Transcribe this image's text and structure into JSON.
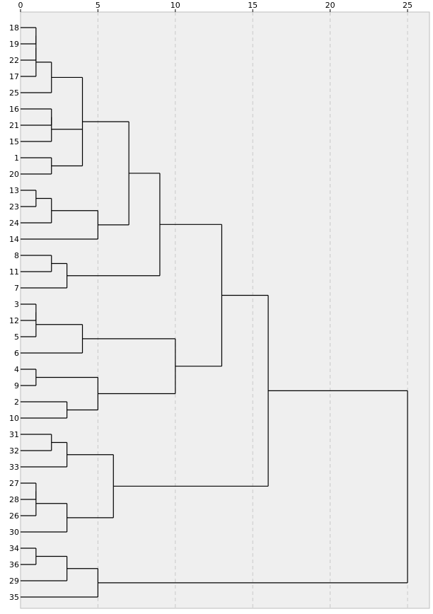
{
  "chart_data": {
    "type": "dendrogram",
    "orientation": "horizontal",
    "xlim": [
      0,
      25
    ],
    "x_ticks": [
      "0",
      "5",
      "10",
      "15",
      "20",
      "25"
    ],
    "grid": "vertical dashed",
    "background_color": "#efefef",
    "line_color": "#000000",
    "leaves": [
      "18",
      "19",
      "22",
      "17",
      "25",
      "16",
      "21",
      "15",
      "1",
      "20",
      "13",
      "23",
      "24",
      "14",
      "8",
      "11",
      "7",
      "3",
      "12",
      "5",
      "6",
      "4",
      "9",
      "2",
      "10",
      "31",
      "32",
      "33",
      "27",
      "28",
      "26",
      "30",
      "34",
      "36",
      "29",
      "35"
    ],
    "merges": [
      {
        "id": "m1",
        "children": [
          "18",
          "19"
        ],
        "height": 1
      },
      {
        "id": "m2",
        "children": [
          "m1",
          "22"
        ],
        "height": 1
      },
      {
        "id": "m3",
        "children": [
          "m2",
          "17"
        ],
        "height": 1
      },
      {
        "id": "m4",
        "children": [
          "m3",
          "25"
        ],
        "height": 2
      },
      {
        "id": "m5",
        "children": [
          "16",
          "21"
        ],
        "height": 2
      },
      {
        "id": "m6",
        "children": [
          "m5",
          "15"
        ],
        "height": 2
      },
      {
        "id": "m7",
        "children": [
          "1",
          "20"
        ],
        "height": 2
      },
      {
        "id": "m8",
        "children": [
          "m4",
          "m6",
          "m7"
        ],
        "height": 4
      },
      {
        "id": "m9",
        "children": [
          "13",
          "23"
        ],
        "height": 1
      },
      {
        "id": "m10",
        "children": [
          "m9",
          "24"
        ],
        "height": 2
      },
      {
        "id": "m11",
        "children": [
          "m10",
          "14"
        ],
        "height": 5
      },
      {
        "id": "m12",
        "children": [
          "m8",
          "m11"
        ],
        "height": 7
      },
      {
        "id": "m13",
        "children": [
          "8",
          "11"
        ],
        "height": 2
      },
      {
        "id": "m14",
        "children": [
          "m13",
          "7"
        ],
        "height": 3
      },
      {
        "id": "m15",
        "children": [
          "m12",
          "m14"
        ],
        "height": 9
      },
      {
        "id": "m16",
        "children": [
          "3",
          "12"
        ],
        "height": 1
      },
      {
        "id": "m17",
        "children": [
          "m16",
          "5"
        ],
        "height": 1
      },
      {
        "id": "m18",
        "children": [
          "m17",
          "6"
        ],
        "height": 4
      },
      {
        "id": "m19",
        "children": [
          "4",
          "9"
        ],
        "height": 1
      },
      {
        "id": "m20",
        "children": [
          "2",
          "10"
        ],
        "height": 3
      },
      {
        "id": "m21",
        "children": [
          "m19",
          "m20"
        ],
        "height": 5
      },
      {
        "id": "m22",
        "children": [
          "m18",
          "m21"
        ],
        "height": 10
      },
      {
        "id": "m23",
        "children": [
          "m15",
          "m22"
        ],
        "height": 13
      },
      {
        "id": "m24",
        "children": [
          "31",
          "32"
        ],
        "height": 2
      },
      {
        "id": "m25",
        "children": [
          "m24",
          "33"
        ],
        "height": 3
      },
      {
        "id": "m26",
        "children": [
          "27",
          "28"
        ],
        "height": 1
      },
      {
        "id": "m27",
        "children": [
          "m26",
          "26"
        ],
        "height": 1
      },
      {
        "id": "m28",
        "children": [
          "m27",
          "30"
        ],
        "height": 3
      },
      {
        "id": "m29",
        "children": [
          "m25",
          "m28"
        ],
        "height": 6
      },
      {
        "id": "m30",
        "children": [
          "m23",
          "m29"
        ],
        "height": 16
      },
      {
        "id": "m31",
        "children": [
          "34",
          "36"
        ],
        "height": 1
      },
      {
        "id": "m32",
        "children": [
          "m31",
          "29"
        ],
        "height": 3
      },
      {
        "id": "m33",
        "children": [
          "m32",
          "35"
        ],
        "height": 5
      },
      {
        "id": "m34",
        "children": [
          "m30",
          "m33"
        ],
        "height": 25
      }
    ]
  }
}
